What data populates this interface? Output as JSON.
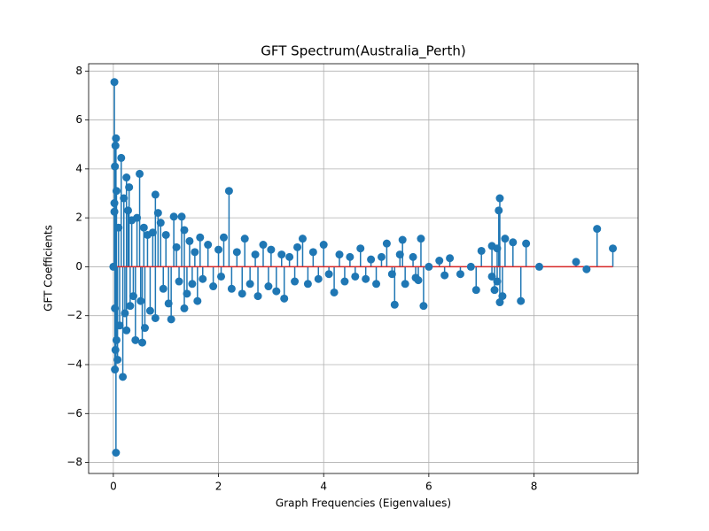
{
  "chart_data": {
    "type": "stem",
    "title": "GFT Spectrum(Australia_Perth)",
    "x_label": "Graph Frequencies (Eigenvalues)",
    "y_label": "GFT Coefficients",
    "color": "#1f77b4",
    "baseline_color": "#d62728",
    "grid": true,
    "xlim": [
      -0.47,
      9.98
    ],
    "ylim": [
      -8.45,
      8.3
    ],
    "xticks": [
      0,
      2,
      4,
      6,
      8
    ],
    "yticks": [
      {
        "value": -8,
        "label": "−8"
      },
      {
        "value": -6,
        "label": "−6"
      },
      {
        "value": -4,
        "label": "−4"
      },
      {
        "value": -2,
        "label": "−2"
      },
      0,
      2,
      4,
      6,
      8
    ],
    "x": [
      0.0,
      0.02,
      0.03,
      0.03,
      0.04,
      0.05,
      0.05,
      0.06,
      0.04,
      0.06,
      0.08,
      0.02,
      0.02,
      0.03,
      0.1,
      0.12,
      0.15,
      0.18,
      0.2,
      0.22,
      0.25,
      0.25,
      0.28,
      0.3,
      0.32,
      0.35,
      0.38,
      0.42,
      0.45,
      0.5,
      0.52,
      0.55,
      0.58,
      0.6,
      0.65,
      0.7,
      0.75,
      0.8,
      0.8,
      0.85,
      0.9,
      0.95,
      1.0,
      1.05,
      1.1,
      1.15,
      1.2,
      1.25,
      1.3,
      1.35,
      1.35,
      1.4,
      1.45,
      1.5,
      1.55,
      1.6,
      1.65,
      1.7,
      1.8,
      1.9,
      2.0,
      2.05,
      2.1,
      2.2,
      2.25,
      2.35,
      2.45,
      2.5,
      2.6,
      2.7,
      2.75,
      2.85,
      2.95,
      3.0,
      3.1,
      3.2,
      3.25,
      3.35,
      3.45,
      3.5,
      3.6,
      3.7,
      3.8,
      3.9,
      4.0,
      4.1,
      4.2,
      4.3,
      4.4,
      4.5,
      4.6,
      4.7,
      4.8,
      4.9,
      5.0,
      5.1,
      5.2,
      5.3,
      5.35,
      5.45,
      5.5,
      5.55,
      5.7,
      5.75,
      5.8,
      5.85,
      5.9,
      6.0,
      6.2,
      6.3,
      6.4,
      6.6,
      6.8,
      6.9,
      7.0,
      7.2,
      7.2,
      7.25,
      7.3,
      7.3,
      7.33,
      7.35,
      7.35,
      7.4,
      7.45,
      7.6,
      7.75,
      7.85,
      8.1,
      8.8,
      9.0,
      9.2,
      9.5
    ],
    "values": [
      0.0,
      7.55,
      4.1,
      -4.2,
      4.95,
      5.25,
      -7.6,
      3.1,
      -3.4,
      -3.0,
      -3.8,
      2.6,
      2.25,
      -1.7,
      1.6,
      -2.4,
      4.45,
      -4.5,
      2.8,
      -1.9,
      3.65,
      -2.6,
      2.3,
      3.25,
      -1.6,
      1.9,
      -1.2,
      -3.0,
      2.0,
      3.8,
      -1.4,
      -3.1,
      1.6,
      -2.5,
      1.3,
      -1.8,
      1.4,
      2.95,
      -2.1,
      2.2,
      1.8,
      -0.9,
      1.3,
      -1.5,
      -2.15,
      2.05,
      0.8,
      -0.6,
      2.05,
      1.5,
      -1.7,
      -1.1,
      1.05,
      -0.7,
      0.6,
      -1.4,
      1.2,
      -0.5,
      0.9,
      -0.8,
      0.7,
      -0.4,
      1.2,
      3.1,
      -0.9,
      0.6,
      -1.1,
      1.15,
      -0.7,
      0.5,
      -1.2,
      0.9,
      -0.8,
      0.7,
      -1.0,
      0.5,
      -1.3,
      0.4,
      -0.6,
      0.8,
      1.15,
      -0.7,
      0.6,
      -0.5,
      0.9,
      -0.3,
      -1.05,
      0.5,
      -0.6,
      0.4,
      -0.4,
      0.75,
      -0.5,
      0.3,
      -0.7,
      0.4,
      0.95,
      -0.3,
      -1.55,
      0.5,
      1.1,
      -0.7,
      0.4,
      -0.45,
      -0.55,
      1.15,
      -1.6,
      0.0,
      0.25,
      -0.35,
      0.35,
      -0.3,
      0.0,
      -0.95,
      0.65,
      0.85,
      -0.4,
      -0.95,
      0.75,
      -0.6,
      2.3,
      2.8,
      -1.45,
      -1.2,
      1.15,
      1.0,
      -1.4,
      0.95,
      0.0,
      0.2,
      -0.1,
      1.55,
      0.75
    ]
  }
}
